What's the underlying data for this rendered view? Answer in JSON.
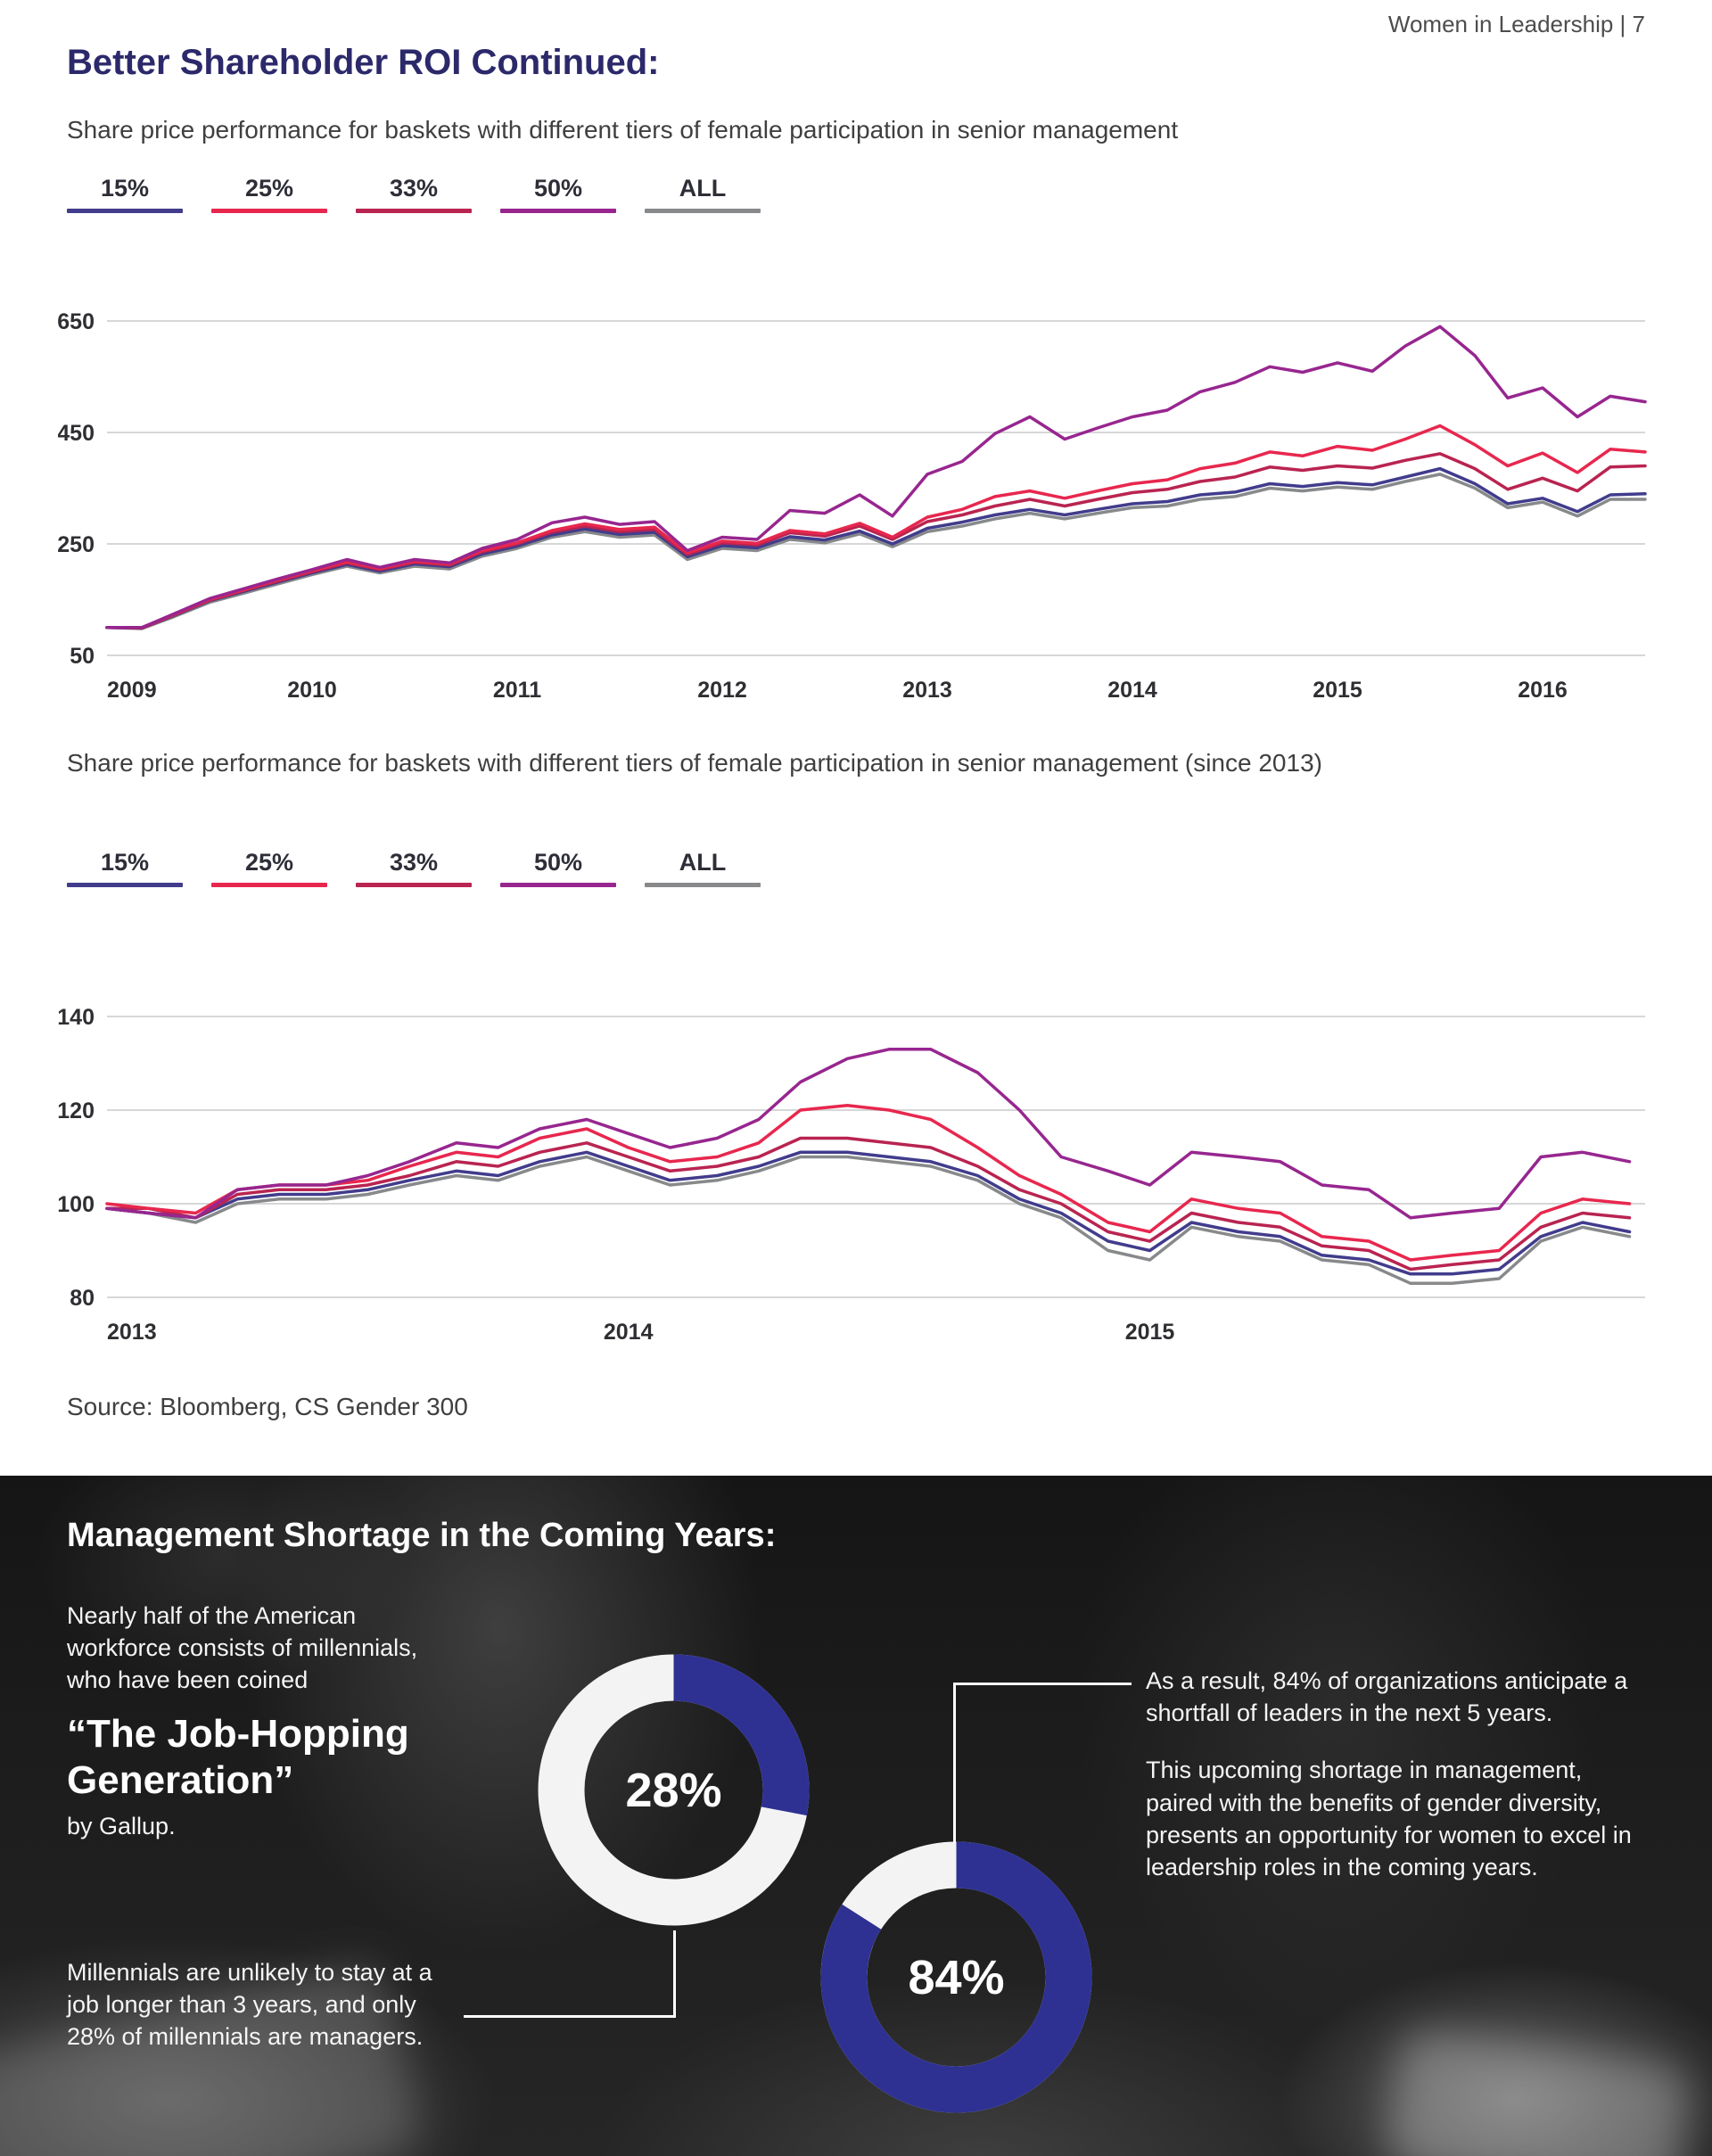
{
  "page": {
    "header": "Women in Leadership | 7",
    "title": "Better Shareholder ROI Continued:",
    "source": "Source: Bloomberg, CS Gender 300",
    "colors": {
      "accent_heading": "#2c296b"
    }
  },
  "chart_data": [
    {
      "type": "line",
      "title": "Share price performance for baskets with different tiers of female participation in senior management",
      "xlabel": "",
      "ylabel": "",
      "xlim": [
        2009,
        2016.5
      ],
      "ylim": [
        50,
        650
      ],
      "yticks": [
        650,
        450,
        250,
        50
      ],
      "xticks": [
        2009,
        2010,
        2011,
        2012,
        2013,
        2014,
        2015,
        2016
      ],
      "grid": true,
      "legend_position": "top",
      "x": [
        2009,
        2009.17,
        2009.33,
        2009.5,
        2009.67,
        2009.83,
        2010,
        2010.17,
        2010.33,
        2010.5,
        2010.67,
        2010.83,
        2011,
        2011.17,
        2011.33,
        2011.5,
        2011.67,
        2011.83,
        2012,
        2012.17,
        2012.33,
        2012.5,
        2012.67,
        2012.83,
        2013,
        2013.17,
        2013.33,
        2013.5,
        2013.67,
        2013.83,
        2014,
        2014.17,
        2014.33,
        2014.5,
        2014.67,
        2014.83,
        2015,
        2015.17,
        2015.33,
        2015.5,
        2015.67,
        2015.83,
        2016,
        2016.17,
        2016.33,
        2016.5
      ],
      "series": [
        {
          "name": "15%",
          "color": "#413c8c",
          "values": [
            100,
            99,
            122,
            148,
            165,
            181,
            198,
            213,
            201,
            214,
            209,
            232,
            246,
            266,
            277,
            267,
            271,
            227,
            247,
            243,
            263,
            257,
            273,
            250,
            278,
            289,
            302,
            312,
            302,
            312,
            322,
            326,
            338,
            343,
            358,
            353,
            360,
            356,
            370,
            385,
            358,
            322,
            332,
            308,
            338,
            340
          ]
        },
        {
          "name": "25%",
          "color": "#e8274e",
          "values": [
            100,
            100,
            124,
            150,
            168,
            185,
            202,
            218,
            206,
            219,
            214,
            238,
            252,
            274,
            286,
            276,
            280,
            234,
            255,
            251,
            274,
            268,
            287,
            262,
            298,
            312,
            335,
            345,
            332,
            345,
            358,
            365,
            385,
            395,
            415,
            408,
            425,
            418,
            438,
            462,
            428,
            390,
            413,
            378,
            420,
            415
          ]
        },
        {
          "name": "33%",
          "color": "#b92450",
          "values": [
            100,
            99,
            123,
            149,
            167,
            183,
            200,
            216,
            204,
            217,
            212,
            236,
            250,
            271,
            282,
            272,
            276,
            231,
            252,
            248,
            270,
            264,
            282,
            258,
            290,
            302,
            318,
            330,
            318,
            330,
            342,
            348,
            362,
            370,
            388,
            382,
            390,
            386,
            400,
            412,
            385,
            348,
            368,
            345,
            388,
            390
          ]
        },
        {
          "name": "50%",
          "color": "#97268f",
          "values": [
            100,
            100,
            125,
            152,
            170,
            187,
            204,
            222,
            208,
            222,
            216,
            242,
            258,
            288,
            298,
            285,
            290,
            238,
            262,
            258,
            310,
            305,
            338,
            300,
            375,
            398,
            448,
            478,
            438,
            458,
            478,
            490,
            523,
            540,
            568,
            558,
            575,
            560,
            605,
            640,
            588,
            512,
            530,
            478,
            515,
            505
          ]
        },
        {
          "name": "ALL",
          "color": "#87898b",
          "values": [
            100,
            98,
            120,
            145,
            162,
            178,
            195,
            210,
            198,
            210,
            205,
            228,
            242,
            262,
            272,
            262,
            266,
            222,
            242,
            238,
            258,
            252,
            268,
            245,
            272,
            282,
            295,
            305,
            295,
            305,
            315,
            318,
            330,
            335,
            350,
            345,
            352,
            348,
            362,
            375,
            350,
            315,
            325,
            300,
            330,
            330
          ]
        }
      ]
    },
    {
      "type": "line",
      "title": "Share price performance for baskets with different tiers of female participation in senior management (since 2013)",
      "xlabel": "",
      "ylabel": "",
      "xlim": [
        2013,
        2015.95
      ],
      "ylim": [
        80,
        140
      ],
      "yticks": [
        140,
        120,
        100,
        80
      ],
      "xticks": [
        2013,
        2014,
        2015
      ],
      "grid": true,
      "legend_position": "top",
      "x": [
        2013,
        2013.08,
        2013.17,
        2013.25,
        2013.33,
        2013.42,
        2013.5,
        2013.58,
        2013.67,
        2013.75,
        2013.83,
        2013.92,
        2014,
        2014.08,
        2014.17,
        2014.25,
        2014.33,
        2014.42,
        2014.5,
        2014.58,
        2014.67,
        2014.75,
        2014.83,
        2014.92,
        2015,
        2015.08,
        2015.17,
        2015.25,
        2015.33,
        2015.42,
        2015.5,
        2015.58,
        2015.67,
        2015.75,
        2015.83,
        2015.92
      ],
      "series": [
        {
          "name": "15%",
          "color": "#413c8c",
          "values": [
            99,
            98,
            97,
            101,
            102,
            102,
            103,
            105,
            107,
            106,
            109,
            111,
            108,
            105,
            106,
            108,
            111,
            111,
            110,
            109,
            106,
            101,
            98,
            92,
            90,
            96,
            94,
            93,
            89,
            88,
            85,
            85,
            86,
            93,
            96,
            94
          ]
        },
        {
          "name": "25%",
          "color": "#e8274e",
          "values": [
            100,
            99,
            98,
            103,
            104,
            104,
            105,
            108,
            111,
            110,
            114,
            116,
            112,
            109,
            110,
            113,
            120,
            121,
            120,
            118,
            112,
            106,
            102,
            96,
            94,
            101,
            99,
            98,
            93,
            92,
            88,
            89,
            90,
            98,
            101,
            100
          ]
        },
        {
          "name": "33%",
          "color": "#b92450",
          "values": [
            99,
            99,
            97,
            102,
            103,
            103,
            104,
            106,
            109,
            108,
            111,
            113,
            110,
            107,
            108,
            110,
            114,
            114,
            113,
            112,
            108,
            103,
            100,
            94,
            92,
            98,
            96,
            95,
            91,
            90,
            86,
            87,
            88,
            95,
            98,
            97
          ]
        },
        {
          "name": "50%",
          "color": "#97268f",
          "values": [
            99,
            98,
            97,
            103,
            104,
            104,
            106,
            109,
            113,
            112,
            116,
            118,
            115,
            112,
            114,
            118,
            126,
            131,
            133,
            133,
            128,
            120,
            110,
            107,
            104,
            111,
            110,
            109,
            104,
            103,
            97,
            98,
            99,
            110,
            111,
            109
          ]
        },
        {
          "name": "ALL",
          "color": "#87898b",
          "values": [
            99,
            98,
            96,
            100,
            101,
            101,
            102,
            104,
            106,
            105,
            108,
            110,
            107,
            104,
            105,
            107,
            110,
            110,
            109,
            108,
            105,
            100,
            97,
            90,
            88,
            95,
            93,
            92,
            88,
            87,
            83,
            83,
            84,
            92,
            95,
            93
          ]
        }
      ]
    },
    {
      "type": "donut",
      "label": "28%",
      "value": 28,
      "color": "#2e3192",
      "track": "#f3f3f4"
    },
    {
      "type": "donut",
      "label": "84%",
      "value": 84,
      "color": "#2e3192",
      "track": "#f3f3f4"
    }
  ],
  "shortage": {
    "title": "Management Shortage in the Coming Years:",
    "left": {
      "intro": "Nearly half of the American workforce consists of millennials, who have been coined",
      "quote": "“The Job-Hopping Generation”",
      "attribution": "by Gallup.",
      "note": "Millennials are unlikely to stay at a job longer than 3 years, and only 28% of millennials are managers."
    },
    "right": {
      "para1": "As a result, 84% of organizations anticipate a shortfall of leaders in the next 5 years.",
      "para2": "This upcoming shortage in management, paired with the benefits of gender diversity, presents an opportunity for women to excel in leadership roles in the coming years."
    }
  }
}
